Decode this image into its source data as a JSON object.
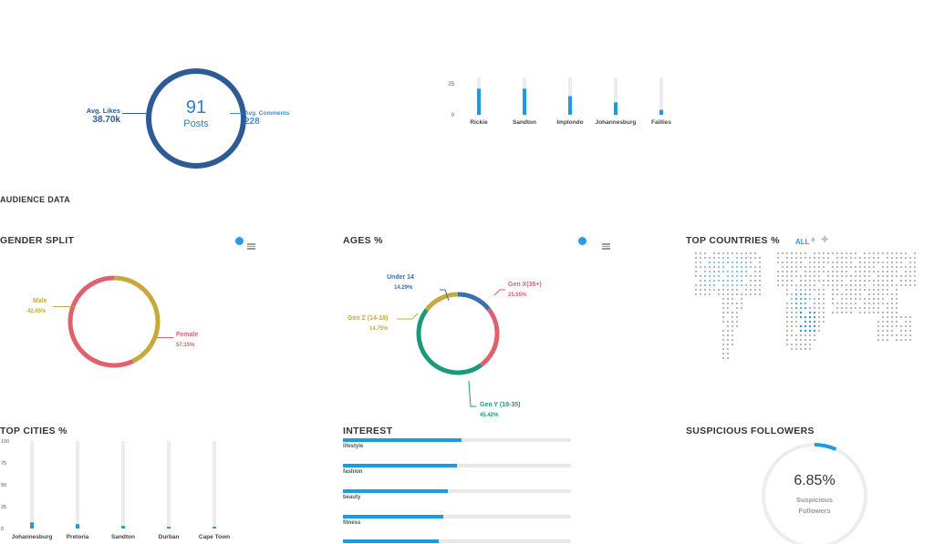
{
  "posts_summary": {
    "count": "91",
    "count_label": "Posts",
    "avg_likes_label": "Avg. Likes",
    "avg_likes_value": "38.70k",
    "avg_comments_label": "Avg. Comments",
    "avg_comments_value": "228",
    "ring_color": "#2d5b96"
  },
  "section_title": "AUDIENCE DATA",
  "gender": {
    "title": "GENDER SPLIT",
    "male_label": "Male",
    "male_pct": "42.85%",
    "female_label": "Female",
    "female_pct": "57.15%"
  },
  "ages": {
    "title": "AGES %",
    "under14_label": "Under 14",
    "under14_pct": "14.29%",
    "genx_label": "Gen X(35+)",
    "genx_pct": "25.55%",
    "genz_label": "Gen Z (14-18)",
    "genz_pct": "14.75%",
    "geny_label": "Gen Y (19-35)",
    "geny_pct": "45.42%"
  },
  "countries": {
    "title": "TOP COUNTRIES %",
    "filter_label": "ALL"
  },
  "cities": {
    "title": "TOP CITIES %"
  },
  "interest": {
    "title": "INTEREST",
    "items": [
      {
        "label": "lifestyle",
        "value": 52
      },
      {
        "label": "fashion",
        "value": 50
      },
      {
        "label": "beauty",
        "value": 46
      },
      {
        "label": "fitness",
        "value": 44
      },
      {
        "label": "",
        "value": 42
      }
    ]
  },
  "suspicious": {
    "title": "SUSPICIOUS FOLLOWERS",
    "pct": "6.85%",
    "label_line1": "Suspicious",
    "label_line2": "Followers",
    "value": 6.85
  },
  "chart_data": [
    {
      "type": "bar",
      "title": "",
      "categories": [
        "Rickie",
        "Sandton",
        "Implondo",
        "Johannesburg",
        "Faillies"
      ],
      "values": [
        21,
        21,
        15,
        10,
        4
      ],
      "yticks": [
        0,
        25
      ],
      "ylim": [
        0,
        30
      ],
      "grid": false
    },
    {
      "type": "pie",
      "title": "GENDER SPLIT",
      "categories": [
        "Male",
        "Female"
      ],
      "values": [
        42.85,
        57.15
      ],
      "colors": [
        "#c8a838",
        "#e0606e"
      ]
    },
    {
      "type": "pie",
      "title": "AGES %",
      "categories": [
        "Under 14",
        "Gen X(35+)",
        "Gen Y (19-35)",
        "Gen Z (14-18)"
      ],
      "values": [
        14.29,
        25.55,
        45.42,
        14.75
      ],
      "colors": [
        "#3a6fb0",
        "#e0606e",
        "#1a9a7a",
        "#c8a838"
      ]
    },
    {
      "type": "bar",
      "title": "TOP CITIES %",
      "categories": [
        "Johannesburg",
        "Pretoria",
        "Sandton",
        "Durban",
        "Cape Town"
      ],
      "values": [
        7,
        5,
        3,
        2,
        2
      ],
      "yticks": [
        0,
        25,
        50,
        75,
        100
      ],
      "ylim": [
        0,
        100
      ]
    }
  ]
}
